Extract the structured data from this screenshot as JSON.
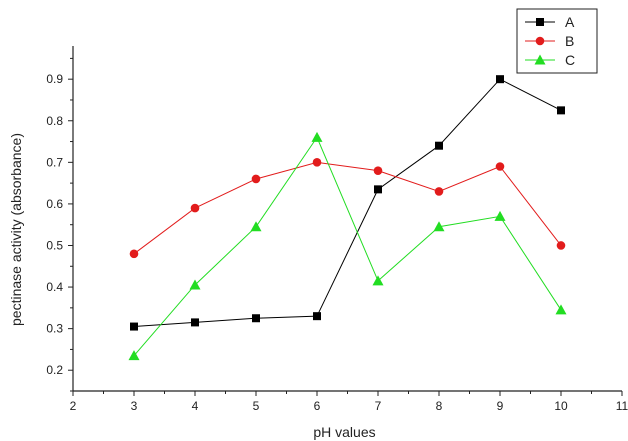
{
  "chart_data": {
    "type": "line",
    "title": "",
    "xlabel": "pH values",
    "ylabel": "pectinase activity (absorbance)",
    "xlim": [
      2,
      11
    ],
    "ylim": [
      0.15,
      0.975
    ],
    "xticks": [
      "2",
      "3",
      "4",
      "5",
      "6",
      "7",
      "8",
      "9",
      "10",
      "11"
    ],
    "yticks": [
      "0.2",
      "0.3",
      "0.4",
      "0.5",
      "0.6",
      "0.7",
      "0.8",
      "0.9"
    ],
    "grid": false,
    "legend_position": "top-right",
    "x": [
      3,
      4,
      5,
      6,
      7,
      8,
      9,
      10
    ],
    "series": [
      {
        "name": "A",
        "color": "#000000",
        "marker": "square",
        "values": [
          0.305,
          0.315,
          0.325,
          0.33,
          0.635,
          0.74,
          0.9,
          0.825
        ]
      },
      {
        "name": "B",
        "color": "#e21c1c",
        "marker": "circle",
        "values": [
          0.48,
          0.59,
          0.66,
          0.7,
          0.68,
          0.63,
          0.69,
          0.5
        ]
      },
      {
        "name": "C",
        "color": "#22dd22",
        "marker": "triangle",
        "values": [
          0.235,
          0.405,
          0.545,
          0.76,
          0.415,
          0.545,
          0.57,
          0.345
        ]
      }
    ]
  }
}
